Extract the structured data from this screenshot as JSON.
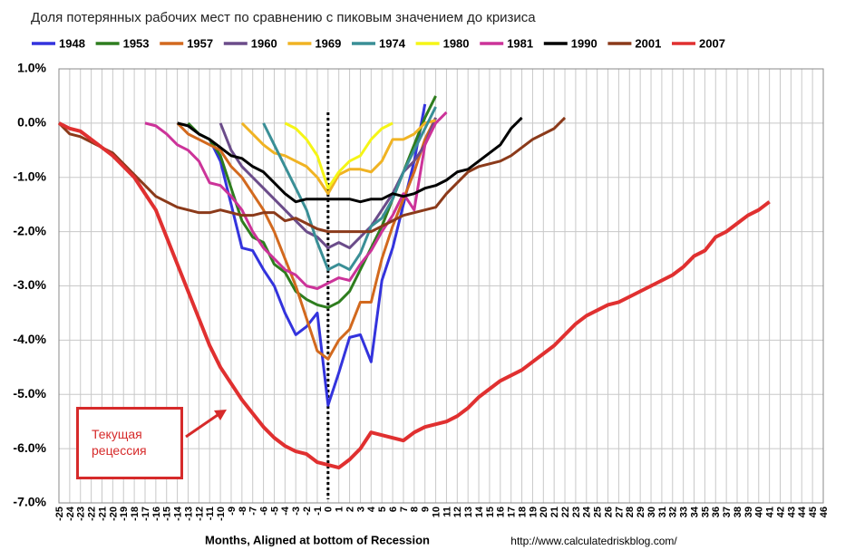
{
  "chart_data": {
    "type": "line",
    "title": "Доля потерянных рабочих мест по сравнению с пиковым значением до кризиса",
    "x_label": "Months, Aligned at bottom of Recession",
    "source": "http://www.calculatedriskblog.com/",
    "annotation": "Текущая рецессия",
    "grid": true,
    "xlim": [
      -25,
      46
    ],
    "ylim": [
      -7,
      1
    ],
    "xticks": [
      -25,
      -24,
      -23,
      -22,
      -21,
      -20,
      -19,
      -18,
      -17,
      -16,
      -15,
      -14,
      -13,
      -12,
      -11,
      -10,
      -9,
      -8,
      -7,
      -6,
      -5,
      -4,
      -3,
      -2,
      -1,
      0,
      1,
      2,
      3,
      4,
      5,
      6,
      7,
      8,
      9,
      10,
      11,
      12,
      13,
      14,
      15,
      16,
      17,
      18,
      19,
      20,
      21,
      22,
      23,
      24,
      25,
      26,
      27,
      28,
      29,
      30,
      31,
      32,
      33,
      34,
      35,
      36,
      37,
      38,
      39,
      40,
      41,
      42,
      43,
      44,
      45,
      46
    ],
    "yticks": [
      {
        "value": 1,
        "label": "1.0%"
      },
      {
        "value": 0,
        "label": "0.0%"
      },
      {
        "value": -1,
        "label": "-1.0%"
      },
      {
        "value": -2,
        "label": "-2.0%"
      },
      {
        "value": -3,
        "label": "-3.0%"
      },
      {
        "value": -4,
        "label": "-4.0%"
      },
      {
        "value": -5,
        "label": "-5.0%"
      },
      {
        "value": -6,
        "label": "-6.0%"
      },
      {
        "value": -7,
        "label": "-7.0%"
      }
    ],
    "series": [
      {
        "name": "1948",
        "color": "#3333dd",
        "x": [
          -11,
          -10,
          -9,
          -8,
          -7,
          -6,
          -5,
          -4,
          -3,
          -2,
          -1,
          0,
          1,
          2,
          3,
          4,
          5,
          6,
          7,
          8,
          9
        ],
        "values": [
          -0.3,
          -0.7,
          -1.5,
          -2.3,
          -2.35,
          -2.7,
          -3.0,
          -3.5,
          -3.9,
          -3.75,
          -3.5,
          -5.2,
          -4.6,
          -3.95,
          -3.9,
          -4.4,
          -2.9,
          -2.3,
          -1.5,
          -0.7,
          0.35
        ]
      },
      {
        "name": "1953",
        "color": "#2e7d1e",
        "x": [
          -13,
          -12,
          -11,
          -10,
          -9,
          -8,
          -7,
          -6,
          -5,
          -4,
          -3,
          -2,
          -1,
          0,
          1,
          2,
          3,
          4,
          5,
          6,
          7,
          8,
          9,
          10
        ],
        "values": [
          0,
          -0.2,
          -0.3,
          -0.6,
          -1.2,
          -1.8,
          -2.1,
          -2.2,
          -2.6,
          -2.75,
          -3.1,
          -3.25,
          -3.35,
          -3.4,
          -3.3,
          -3.1,
          -2.7,
          -2.3,
          -1.9,
          -1.4,
          -0.9,
          -0.4,
          0.1,
          0.5
        ]
      },
      {
        "name": "1957",
        "color": "#d2691e",
        "x": [
          -14,
          -13,
          -12,
          -11,
          -10,
          -9,
          -8,
          -7,
          -6,
          -5,
          -4,
          -3,
          -2,
          -1,
          0,
          1,
          2,
          3,
          4,
          5,
          6,
          7,
          8,
          9,
          10
        ],
        "values": [
          0,
          -0.2,
          -0.3,
          -0.4,
          -0.5,
          -0.8,
          -1.0,
          -1.3,
          -1.6,
          -2.0,
          -2.5,
          -3.0,
          -3.6,
          -4.2,
          -4.35,
          -4.0,
          -3.8,
          -3.3,
          -3.3,
          -2.5,
          -1.9,
          -1.4,
          -0.9,
          -0.3,
          0.1
        ]
      },
      {
        "name": "1960",
        "color": "#6b4c8a",
        "x": [
          -10,
          -9,
          -8,
          -7,
          -6,
          -5,
          -4,
          -3,
          -2,
          -1,
          0,
          1,
          2,
          3,
          4,
          5,
          6,
          7,
          8,
          9,
          10
        ],
        "values": [
          0,
          -0.5,
          -0.8,
          -1.0,
          -1.2,
          -1.4,
          -1.6,
          -1.8,
          -2.0,
          -2.1,
          -2.3,
          -2.2,
          -2.3,
          -2.1,
          -1.9,
          -1.6,
          -1.3,
          -0.9,
          -0.7,
          -0.4,
          0.1
        ]
      },
      {
        "name": "1969",
        "color": "#f0b323",
        "x": [
          -8,
          -7,
          -6,
          -5,
          -4,
          -3,
          -2,
          -1,
          0,
          1,
          2,
          3,
          4,
          5,
          6,
          7,
          8,
          9,
          10
        ],
        "values": [
          0,
          -0.2,
          -0.4,
          -0.55,
          -0.6,
          -0.7,
          -0.8,
          -1.0,
          -1.3,
          -0.95,
          -0.85,
          -0.85,
          -0.9,
          -0.7,
          -0.3,
          -0.3,
          -0.2,
          0.0,
          0.05
        ]
      },
      {
        "name": "1974",
        "color": "#3a8f96",
        "x": [
          -6,
          -5,
          -4,
          -3,
          -2,
          -1,
          0,
          1,
          2,
          3,
          4,
          5,
          6,
          7,
          8,
          9,
          10
        ],
        "values": [
          0,
          -0.4,
          -0.8,
          -1.2,
          -1.6,
          -2.2,
          -2.7,
          -2.6,
          -2.7,
          -2.4,
          -1.9,
          -1.75,
          -1.4,
          -0.9,
          -0.5,
          -0.1,
          0.3
        ]
      },
      {
        "name": "1980",
        "color": "#f5f516",
        "x": [
          -4,
          -3,
          -2,
          -1,
          0,
          1,
          2,
          3,
          4,
          5,
          6
        ],
        "values": [
          0,
          -0.1,
          -0.3,
          -0.6,
          -1.2,
          -0.9,
          -0.7,
          -0.6,
          -0.3,
          -0.1,
          0.0
        ]
      },
      {
        "name": "1981",
        "color": "#cc3399",
        "x": [
          -17,
          -16,
          -15,
          -14,
          -13,
          -12,
          -11,
          -10,
          -9,
          -8,
          -7,
          -6,
          -5,
          -4,
          -3,
          -2,
          -1,
          0,
          1,
          2,
          3,
          4,
          5,
          6,
          7,
          8,
          9,
          10,
          11
        ],
        "values": [
          0,
          -0.05,
          -0.2,
          -0.4,
          -0.5,
          -0.7,
          -1.1,
          -1.15,
          -1.35,
          -1.6,
          -2.0,
          -2.3,
          -2.5,
          -2.7,
          -2.8,
          -3.0,
          -3.05,
          -2.95,
          -2.85,
          -2.9,
          -2.6,
          -2.35,
          -2.0,
          -1.7,
          -1.3,
          -1.6,
          -0.4,
          0.0,
          0.2
        ]
      },
      {
        "name": "1990",
        "color": "#000000",
        "x": [
          -14,
          -13,
          -12,
          -11,
          -10,
          -9,
          -8,
          -7,
          -6,
          -5,
          -4,
          -3,
          -2,
          -1,
          0,
          1,
          2,
          3,
          4,
          5,
          6,
          7,
          8,
          9,
          10,
          11,
          12,
          13,
          14,
          15,
          16,
          17,
          18
        ],
        "values": [
          0,
          -0.05,
          -0.2,
          -0.3,
          -0.45,
          -0.6,
          -0.65,
          -0.8,
          -0.9,
          -1.1,
          -1.3,
          -1.45,
          -1.4,
          -1.4,
          -1.4,
          -1.4,
          -1.4,
          -1.45,
          -1.4,
          -1.4,
          -1.3,
          -1.35,
          -1.3,
          -1.2,
          -1.15,
          -1.05,
          -0.9,
          -0.85,
          -0.7,
          -0.55,
          -0.4,
          -0.1,
          0.1
        ]
      },
      {
        "name": "2001",
        "color": "#8b3a1a",
        "x": [
          -25,
          -24,
          -23,
          -22,
          -21,
          -20,
          -19,
          -18,
          -17,
          -16,
          -15,
          -14,
          -13,
          -12,
          -11,
          -10,
          -9,
          -8,
          -7,
          -6,
          -5,
          -4,
          -3,
          -2,
          -1,
          0,
          1,
          2,
          3,
          4,
          5,
          6,
          7,
          8,
          9,
          10,
          11,
          12,
          13,
          14,
          15,
          16,
          17,
          18,
          19,
          20,
          21,
          22
        ],
        "values": [
          0,
          -0.2,
          -0.25,
          -0.35,
          -0.45,
          -0.55,
          -0.75,
          -0.95,
          -1.15,
          -1.35,
          -1.45,
          -1.55,
          -1.6,
          -1.65,
          -1.65,
          -1.6,
          -1.65,
          -1.7,
          -1.7,
          -1.65,
          -1.65,
          -1.8,
          -1.75,
          -1.85,
          -1.95,
          -2.0,
          -2.0,
          -2.0,
          -2.0,
          -2.0,
          -1.9,
          -1.8,
          -1.7,
          -1.65,
          -1.6,
          -1.55,
          -1.3,
          -1.1,
          -0.9,
          -0.8,
          -0.75,
          -0.7,
          -0.6,
          -0.45,
          -0.3,
          -0.2,
          -0.1,
          0.1
        ]
      },
      {
        "name": "2007",
        "color": "#e03030",
        "x": [
          -25,
          -24,
          -23,
          -22,
          -21,
          -20,
          -19,
          -18,
          -17,
          -16,
          -15,
          -14,
          -13,
          -12,
          -11,
          -10,
          -9,
          -8,
          -7,
          -6,
          -5,
          -4,
          -3,
          -2,
          -1,
          0,
          1,
          2,
          3,
          4,
          5,
          6,
          7,
          8,
          9,
          10,
          11,
          12,
          13,
          14,
          15,
          16,
          17,
          18,
          19,
          20,
          21,
          22,
          23,
          24,
          25,
          26,
          27,
          28,
          29,
          30,
          31,
          32,
          33,
          34,
          35,
          36,
          37,
          38,
          39,
          40,
          41
        ],
        "values": [
          0,
          -0.1,
          -0.15,
          -0.3,
          -0.45,
          -0.6,
          -0.8,
          -1.0,
          -1.3,
          -1.6,
          -2.1,
          -2.6,
          -3.1,
          -3.6,
          -4.1,
          -4.5,
          -4.8,
          -5.1,
          -5.35,
          -5.6,
          -5.8,
          -5.95,
          -6.05,
          -6.1,
          -6.25,
          -6.3,
          -6.35,
          -6.2,
          -6.0,
          -5.7,
          -5.75,
          -5.8,
          -5.85,
          -5.7,
          -5.6,
          -5.55,
          -5.5,
          -5.4,
          -5.25,
          -5.05,
          -4.9,
          -4.75,
          -4.65,
          -4.55,
          -4.4,
          -4.25,
          -4.1,
          -3.9,
          -3.7,
          -3.55,
          -3.45,
          -3.35,
          -3.3,
          -3.2,
          -3.1,
          -3.0,
          -2.9,
          -2.8,
          -2.65,
          -2.45,
          -2.35,
          -2.1,
          -2.0,
          -1.85,
          -1.7,
          -1.6,
          -1.45
        ]
      }
    ]
  }
}
